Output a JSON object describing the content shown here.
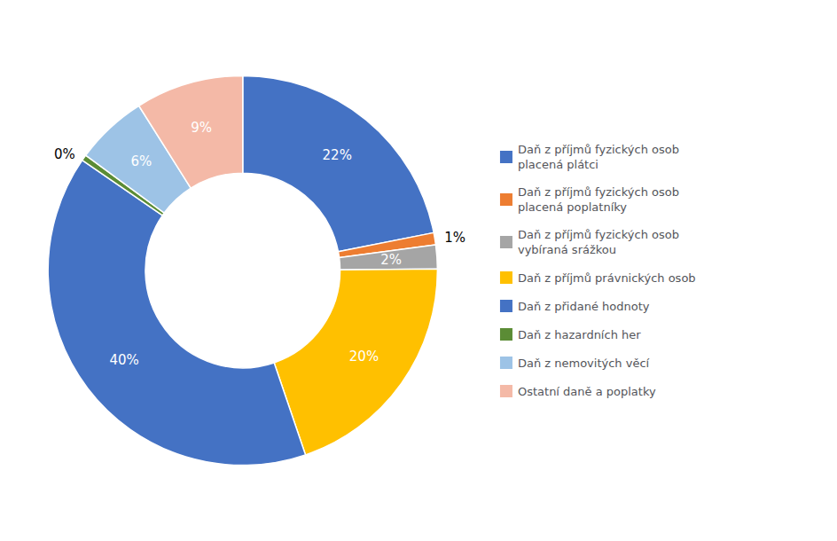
{
  "chart_data": {
    "type": "pie",
    "categories": [
      "Daň z příjmů fyzických osob\nplacená plátci",
      "Daň z příjmů fyzických osob\nplacená poplatníky",
      "Daň z příjmů fyzických osob\nvybíraná srážkou",
      "Daň z příjmů právnických osob",
      "Daň z přidané hodnoty",
      "Daň z hazardních her",
      "Daň z nemovitých věcí",
      "Ostatní daně a poplatky"
    ],
    "values": [
      22,
      1,
      2,
      20,
      40,
      0.5,
      6,
      9
    ],
    "value_labels": [
      "22%",
      "1%",
      "2%",
      "20%",
      "40%",
      "0%",
      "6%",
      "9%"
    ],
    "colors": [
      "#4472C4",
      "#ED7D31",
      "#A5A5A5",
      "#FFC000",
      "#4472C4",
      "#5B8C35",
      "#9DC3E6",
      "#F4B9A7"
    ],
    "data_labels": true,
    "legend": "right"
  }
}
